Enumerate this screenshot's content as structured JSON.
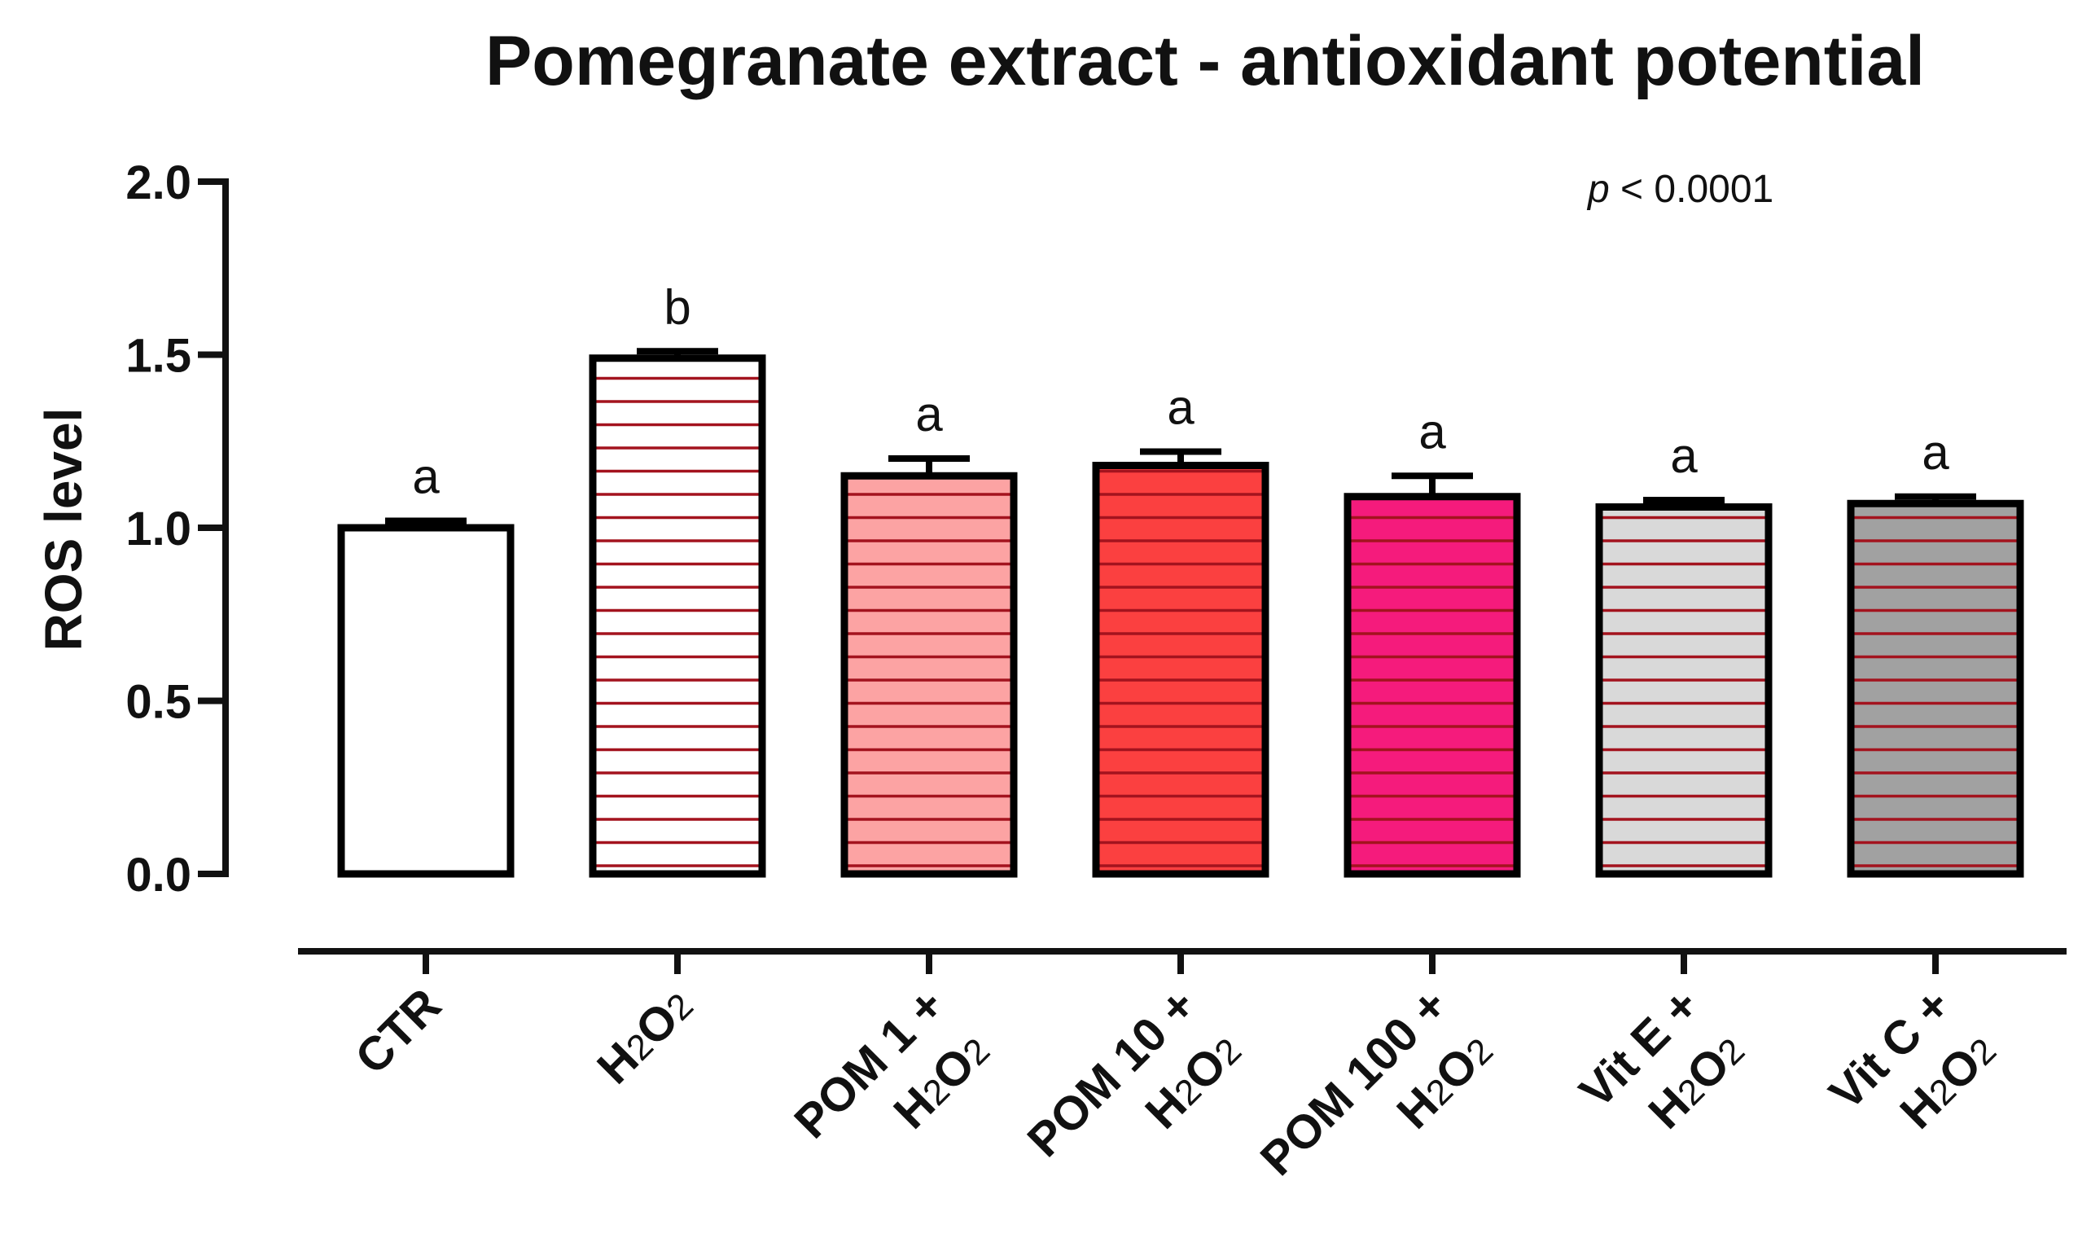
{
  "chart_data": {
    "type": "bar",
    "title": "Pomegranate extract - antioxidant potential",
    "xlabel": "",
    "ylabel": "ROS level",
    "ylim": [
      0,
      2.0
    ],
    "yticks": [
      {
        "value": 0.0,
        "label": "0.0"
      },
      {
        "value": 0.5,
        "label": "0.5"
      },
      {
        "value": 1.0,
        "label": "1.0"
      },
      {
        "value": 1.5,
        "label": "1.5"
      },
      {
        "value": 2.0,
        "label": "2.0"
      }
    ],
    "annotation": {
      "p_symbol": "p",
      "p_text": " < 0.0001"
    },
    "categories": [
      {
        "line1": "CTR",
        "line2": "",
        "value": 1.0,
        "error": 0.02,
        "significance": "a",
        "fill": "#ffffff",
        "hatched": false
      },
      {
        "line1": "H2O2",
        "line2": "",
        "value": 1.49,
        "error": 0.02,
        "significance": "b",
        "fill": "#ffffff",
        "hatched": true
      },
      {
        "line1": "POM 1 +",
        "line2": "H2O2",
        "value": 1.15,
        "error": 0.05,
        "significance": "a",
        "fill": "#fca3a3",
        "hatched": true
      },
      {
        "line1": "POM 10 +",
        "line2": "H2O2",
        "value": 1.18,
        "error": 0.04,
        "significance": "a",
        "fill": "#fb4040",
        "hatched": true
      },
      {
        "line1": "POM 100 +",
        "line2": "H2O2",
        "value": 1.09,
        "error": 0.06,
        "significance": "a",
        "fill": "#f51b7c",
        "hatched": true
      },
      {
        "line1": "Vit E +",
        "line2": "H2O2",
        "value": 1.06,
        "error": 0.02,
        "significance": "a",
        "fill": "#d9d9d9",
        "hatched": true
      },
      {
        "line1": "Vit C +",
        "line2": "H2O2",
        "value": 1.07,
        "error": 0.02,
        "significance": "a",
        "fill": "#a1a1a1",
        "hatched": true
      }
    ],
    "hatch_color": "#a3131e",
    "axis_color": "#111111"
  }
}
